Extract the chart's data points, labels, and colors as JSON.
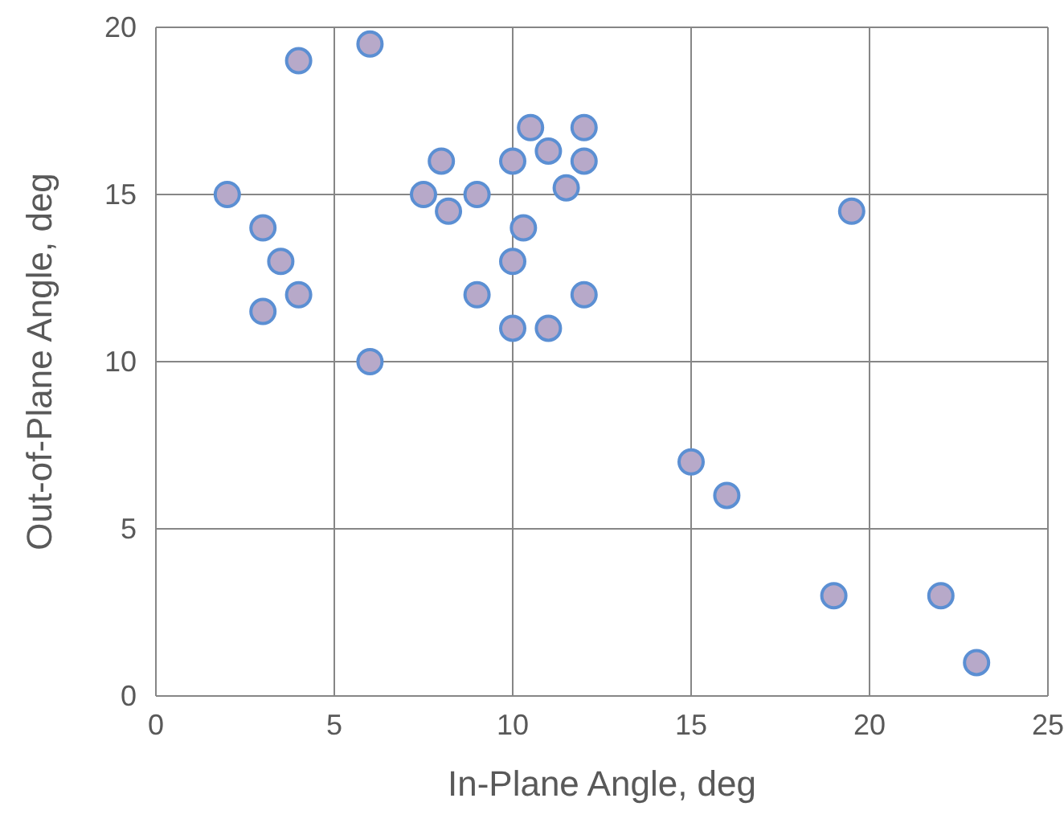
{
  "chart_data": {
    "type": "scatter",
    "xlabel": "In-Plane Angle, deg",
    "ylabel": "Out-of-Plane Angle, deg",
    "xlim": [
      0,
      25
    ],
    "ylim": [
      0,
      20
    ],
    "xticks": [
      0,
      5,
      10,
      15,
      20,
      25
    ],
    "yticks": [
      0,
      5,
      10,
      15,
      20
    ],
    "grid": true,
    "marker": "circle",
    "series": [
      {
        "color": "#b7a9c9",
        "x": [
          2,
          3,
          3.5,
          4,
          3,
          4,
          6,
          6,
          7.5,
          8,
          8.2,
          9,
          9,
          10,
          10,
          10,
          10.3,
          10.5,
          11,
          11,
          11.5,
          12,
          12,
          12,
          19.5,
          15,
          16,
          19,
          22,
          23
        ],
        "values": [
          15,
          14,
          13,
          12,
          11.5,
          19,
          19.5,
          10,
          15,
          16,
          14.5,
          15,
          12,
          16,
          13,
          11,
          14,
          17,
          16.3,
          11,
          15.2,
          17,
          16,
          12,
          14.5,
          7,
          6,
          3,
          3,
          1
        ]
      }
    ]
  }
}
